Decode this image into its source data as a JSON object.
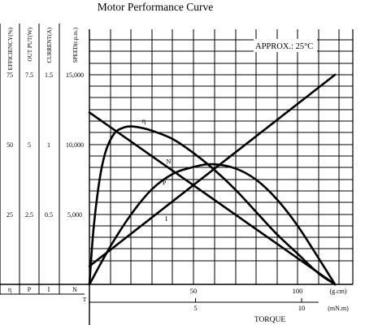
{
  "chart_data": {
    "type": "line",
    "title": "Motor Performance Curve",
    "annotation": "APPROX.: 25°C",
    "xlabel": "TORQUE",
    "x_units": {
      "gcm": "(g.cm)",
      "mNm": "(mN.m)"
    },
    "x_ticks_gcm": [
      "50",
      "100"
    ],
    "x_ticks_mNm": [
      "5",
      "10"
    ],
    "xlim_gcm": [
      0,
      118
    ],
    "left_axes": [
      {
        "key": "eta",
        "label": "EFFICIENCY(%)",
        "symbol": "η",
        "ticks": [
          "75",
          "50",
          "25"
        ],
        "values": [
          75,
          50,
          25
        ]
      },
      {
        "key": "p",
        "label": "OUT PUT(W)",
        "symbol": "P",
        "ticks": [
          "7.5",
          "5",
          "2.5"
        ],
        "values": [
          7.5,
          5,
          2.5
        ]
      },
      {
        "key": "i",
        "label": "CURRENT(A)",
        "symbol": "I",
        "ticks": [
          "1.5",
          "1",
          "0.5"
        ],
        "values": [
          1.5,
          1,
          0.5
        ]
      },
      {
        "key": "n",
        "label": "SPEED(r.p.m.)",
        "symbol": "N",
        "ticks": [
          "15,000",
          "10,000",
          "5,000"
        ],
        "values": [
          15000,
          10000,
          5000
        ]
      }
    ],
    "origin_label": "T",
    "grid": true,
    "series": [
      {
        "name": "η",
        "axis": "eta",
        "x": [
          0,
          2,
          5,
          8,
          12,
          16,
          20,
          25,
          30,
          40,
          50,
          60,
          70,
          80,
          90,
          100,
          110,
          118
        ],
        "y": [
          0,
          20,
          38,
          48,
          54,
          56,
          56.5,
          56,
          55,
          52,
          47,
          41,
          34,
          26,
          18,
          11,
          4,
          0
        ]
      },
      {
        "name": "P",
        "axis": "p",
        "x": [
          0,
          10,
          20,
          30,
          40,
          50,
          59,
          70,
          80,
          90,
          100,
          110,
          118
        ],
        "y": [
          0,
          1.35,
          2.5,
          3.4,
          3.95,
          4.2,
          4.3,
          4.15,
          3.75,
          3.05,
          2.1,
          0.95,
          0
        ]
      },
      {
        "name": "N",
        "axis": "n",
        "x": [
          0,
          118
        ],
        "y": [
          12300,
          0
        ]
      },
      {
        "name": "I",
        "axis": "i",
        "x": [
          0,
          118
        ],
        "y": [
          0.13,
          1.5
        ]
      }
    ]
  }
}
